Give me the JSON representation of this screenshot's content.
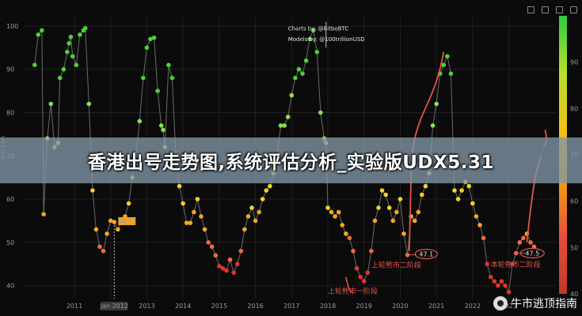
{
  "chart_data": {
    "type": "scatter",
    "ylabel": "RSI 12m",
    "ylim": [
      37,
      102
    ],
    "yticks": [
      40,
      50,
      60,
      70,
      80,
      90,
      100
    ],
    "xlim": [
      2009.6,
      2024.3
    ],
    "xticks": [
      "2011",
      "2012",
      "2013",
      "2014",
      "2015",
      "2016",
      "2017",
      "2018",
      "2019",
      "2020",
      "2021",
      "2022",
      "2023"
    ],
    "cursor_label": "Jan 2012",
    "highlight": {
      "x": 2012.1,
      "y": 54.72,
      "label": "54.72"
    },
    "credits": [
      "Charts by: @BitboBTC",
      "Models by: @100trillionUSD"
    ],
    "colorbar": {
      "colors": [
        "#2ecc40",
        "#b5e02d",
        "#f0c419",
        "#f39c12",
        "#e74c3c",
        "#c0392b"
      ]
    },
    "annotations": [
      {
        "text": "上轮熊市一阶段"
      },
      {
        "text": "上轮熊市二阶段",
        "value": "47.1"
      },
      {
        "text": "本轮熊市二阶段",
        "value": "47.5"
      }
    ],
    "points": [
      [
        2009.9,
        91
      ],
      [
        2010.0,
        98
      ],
      [
        2010.1,
        99
      ],
      [
        2010.15,
        56.5
      ],
      [
        2010.25,
        74
      ],
      [
        2010.35,
        82
      ],
      [
        2010.45,
        72
      ],
      [
        2010.55,
        73
      ],
      [
        2010.6,
        88
      ],
      [
        2010.7,
        90
      ],
      [
        2010.8,
        94
      ],
      [
        2010.85,
        96
      ],
      [
        2010.9,
        97.5
      ],
      [
        2010.95,
        93
      ],
      [
        2011.05,
        91
      ],
      [
        2011.15,
        98
      ],
      [
        2011.25,
        99
      ],
      [
        2011.3,
        99.5
      ],
      [
        2011.4,
        82
      ],
      [
        2011.5,
        62
      ],
      [
        2011.6,
        53
      ],
      [
        2011.7,
        49
      ],
      [
        2011.8,
        48
      ],
      [
        2011.9,
        52
      ],
      [
        2012.0,
        55
      ],
      [
        2012.1,
        54.7
      ],
      [
        2012.2,
        53
      ],
      [
        2012.3,
        55
      ],
      [
        2012.4,
        56
      ],
      [
        2012.5,
        59
      ],
      [
        2012.6,
        65
      ],
      [
        2012.7,
        70
      ],
      [
        2012.8,
        78
      ],
      [
        2012.9,
        88
      ],
      [
        2013.0,
        95
      ],
      [
        2013.1,
        97
      ],
      [
        2013.2,
        97.3
      ],
      [
        2013.3,
        85
      ],
      [
        2013.4,
        77
      ],
      [
        2013.45,
        76
      ],
      [
        2013.5,
        72
      ],
      [
        2013.6,
        91
      ],
      [
        2013.7,
        88
      ],
      [
        2013.8,
        70
      ],
      [
        2013.9,
        63
      ],
      [
        2014.0,
        59
      ],
      [
        2014.1,
        54.5
      ],
      [
        2014.2,
        54.5
      ],
      [
        2014.3,
        57
      ],
      [
        2014.4,
        60
      ],
      [
        2014.5,
        56
      ],
      [
        2014.6,
        53
      ],
      [
        2014.7,
        50
      ],
      [
        2014.8,
        49
      ],
      [
        2014.9,
        47
      ],
      [
        2015.0,
        44.5
      ],
      [
        2015.1,
        44
      ],
      [
        2015.2,
        43.5
      ],
      [
        2015.3,
        46
      ],
      [
        2015.4,
        43
      ],
      [
        2015.5,
        45
      ],
      [
        2015.6,
        48
      ],
      [
        2015.7,
        53
      ],
      [
        2015.8,
        56
      ],
      [
        2015.9,
        58
      ],
      [
        2016.0,
        55
      ],
      [
        2016.1,
        57
      ],
      [
        2016.2,
        60
      ],
      [
        2016.3,
        62
      ],
      [
        2016.4,
        63
      ],
      [
        2016.5,
        66
      ],
      [
        2016.6,
        70
      ],
      [
        2016.7,
        77
      ],
      [
        2016.8,
        77
      ],
      [
        2016.9,
        79
      ],
      [
        2017.0,
        84
      ],
      [
        2017.1,
        88
      ],
      [
        2017.2,
        90
      ],
      [
        2017.3,
        89
      ],
      [
        2017.4,
        92
      ],
      [
        2017.5,
        97
      ],
      [
        2017.6,
        99
      ],
      [
        2017.7,
        94
      ],
      [
        2017.8,
        80
      ],
      [
        2017.9,
        74
      ],
      [
        2017.95,
        73
      ],
      [
        2018.0,
        58
      ],
      [
        2018.1,
        57
      ],
      [
        2018.2,
        56
      ],
      [
        2018.3,
        57
      ],
      [
        2018.4,
        54
      ],
      [
        2018.5,
        52
      ],
      [
        2018.6,
        51
      ],
      [
        2018.7,
        48
      ],
      [
        2018.8,
        44
      ],
      [
        2018.9,
        42
      ],
      [
        2019.0,
        41
      ],
      [
        2019.1,
        43
      ],
      [
        2019.2,
        48
      ],
      [
        2019.3,
        55
      ],
      [
        2019.4,
        58
      ],
      [
        2019.5,
        62
      ],
      [
        2019.6,
        61
      ],
      [
        2019.7,
        58
      ],
      [
        2019.8,
        55
      ],
      [
        2019.9,
        57
      ],
      [
        2020.0,
        60
      ],
      [
        2020.1,
        52
      ],
      [
        2020.2,
        47.1
      ],
      [
        2020.3,
        56
      ],
      [
        2020.4,
        55
      ],
      [
        2020.5,
        57
      ],
      [
        2020.6,
        61
      ],
      [
        2020.7,
        63
      ],
      [
        2020.8,
        66
      ],
      [
        2020.9,
        77
      ],
      [
        2021.0,
        82
      ],
      [
        2021.1,
        89
      ],
      [
        2021.2,
        91
      ],
      [
        2021.3,
        93
      ],
      [
        2021.4,
        89
      ],
      [
        2021.5,
        62
      ],
      [
        2021.6,
        60
      ],
      [
        2021.7,
        62
      ],
      [
        2021.8,
        64
      ],
      [
        2021.9,
        63
      ],
      [
        2022.0,
        59
      ],
      [
        2022.1,
        56
      ],
      [
        2022.2,
        54
      ],
      [
        2022.3,
        51
      ],
      [
        2022.4,
        45
      ],
      [
        2022.5,
        42
      ],
      [
        2022.6,
        41
      ],
      [
        2022.7,
        40
      ],
      [
        2022.8,
        41
      ],
      [
        2022.9,
        40
      ],
      [
        2023.0,
        38.5
      ],
      [
        2023.1,
        45
      ],
      [
        2023.2,
        47.5
      ],
      [
        2023.3,
        50
      ],
      [
        2023.4,
        51
      ],
      [
        2023.5,
        52
      ],
      [
        2023.6,
        50
      ],
      [
        2023.7,
        49
      ]
    ]
  },
  "banner": {
    "title": "香港出号走势图,系统评估分析_实验版UDX5.31"
  },
  "watermark": {
    "text": "牛市逃顶指南"
  }
}
